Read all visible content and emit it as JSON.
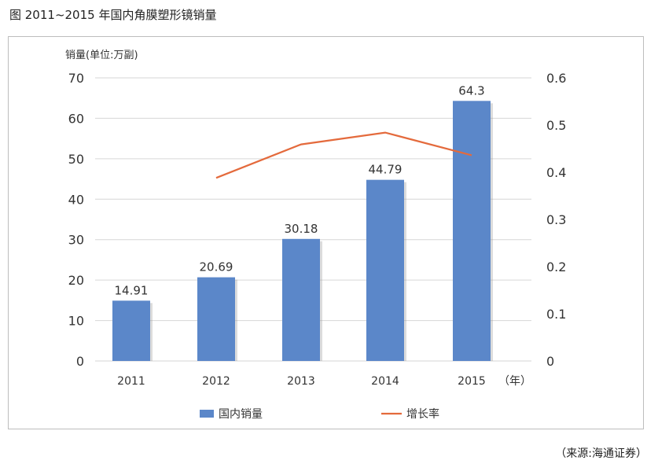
{
  "figure": {
    "title": "图   2011~2015 年国内角膜塑形镜销量",
    "source": "（来源:海通证券）"
  },
  "chart_data": {
    "type": "bar",
    "title": "图   2011~2015 年国内角膜塑形镜销量",
    "ylabel": "销量(单位:万副)",
    "xunit": "（年）",
    "categories": [
      "2011",
      "2012",
      "2013",
      "2014",
      "2015"
    ],
    "ylim": [
      0,
      70
    ],
    "y_ticks": [
      0,
      10,
      20,
      30,
      40,
      50,
      60,
      70
    ],
    "y2lim": [
      0,
      0.6
    ],
    "y2_ticks": [
      0,
      0.1,
      0.2,
      0.3,
      0.4,
      0.5,
      0.6
    ],
    "series": [
      {
        "name": "国内销量",
        "type": "bar",
        "axis": "left",
        "color": "#5b87c9",
        "values": [
          14.91,
          20.69,
          30.18,
          44.79,
          64.3
        ],
        "labels": [
          "14.91",
          "20.69",
          "30.18",
          "44.79",
          "64.3"
        ]
      },
      {
        "name": "增长率",
        "type": "line",
        "axis": "right",
        "color": "#e46a3c",
        "values": [
          null,
          0.388,
          0.459,
          0.484,
          0.436
        ]
      }
    ],
    "grid": true,
    "legend_position": "bottom"
  }
}
